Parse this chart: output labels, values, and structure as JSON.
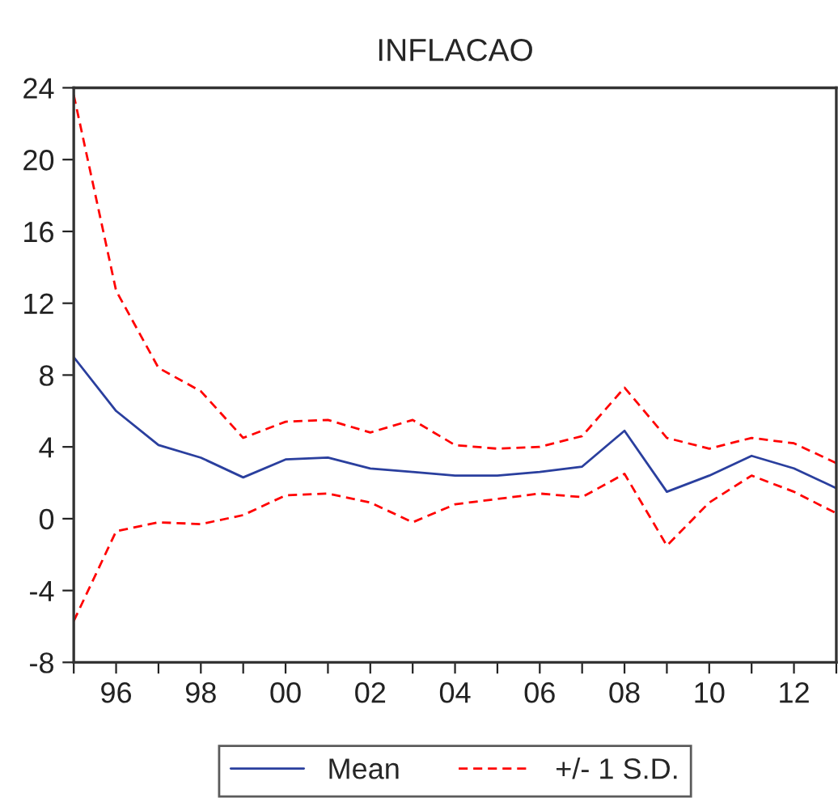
{
  "chart_data": {
    "type": "line",
    "title": "INFLACAO",
    "categories": [
      null,
      "96",
      null,
      "98",
      null,
      "00",
      null,
      "02",
      null,
      "04",
      null,
      "06",
      null,
      "08",
      null,
      "10",
      null,
      "12",
      null
    ],
    "series": [
      {
        "name": "Mean",
        "color": "#2a3f9e",
        "line_style": "solid",
        "values": [
          9.0,
          6.0,
          4.1,
          3.4,
          2.3,
          3.3,
          3.4,
          2.8,
          2.6,
          2.4,
          2.4,
          2.6,
          2.9,
          4.9,
          1.5,
          2.4,
          3.5,
          2.8,
          1.7
        ]
      },
      {
        "name": "+/- 1 S.D.",
        "color": "#ff0000",
        "line_style": "dashed",
        "values": [
          23.6,
          12.7,
          8.4,
          7.1,
          4.5,
          5.4,
          5.5,
          4.8,
          5.5,
          4.1,
          3.9,
          4.0,
          4.6,
          7.3,
          4.5,
          3.9,
          4.5,
          4.2,
          3.1
        ]
      },
      {
        "color": "#ff0000",
        "line_style": "dashed",
        "values": [
          -5.7,
          -0.7,
          -0.2,
          -0.3,
          0.2,
          1.3,
          1.4,
          0.9,
          -0.2,
          0.8,
          1.1,
          1.4,
          1.2,
          2.5,
          -1.5,
          0.9,
          2.4,
          1.5,
          0.3
        ]
      }
    ],
    "ylim": [
      -8,
      24
    ],
    "yticks": [
      -8,
      -4,
      0,
      4,
      8,
      12,
      16,
      20,
      24
    ],
    "grid": false,
    "legend": "bottom"
  }
}
